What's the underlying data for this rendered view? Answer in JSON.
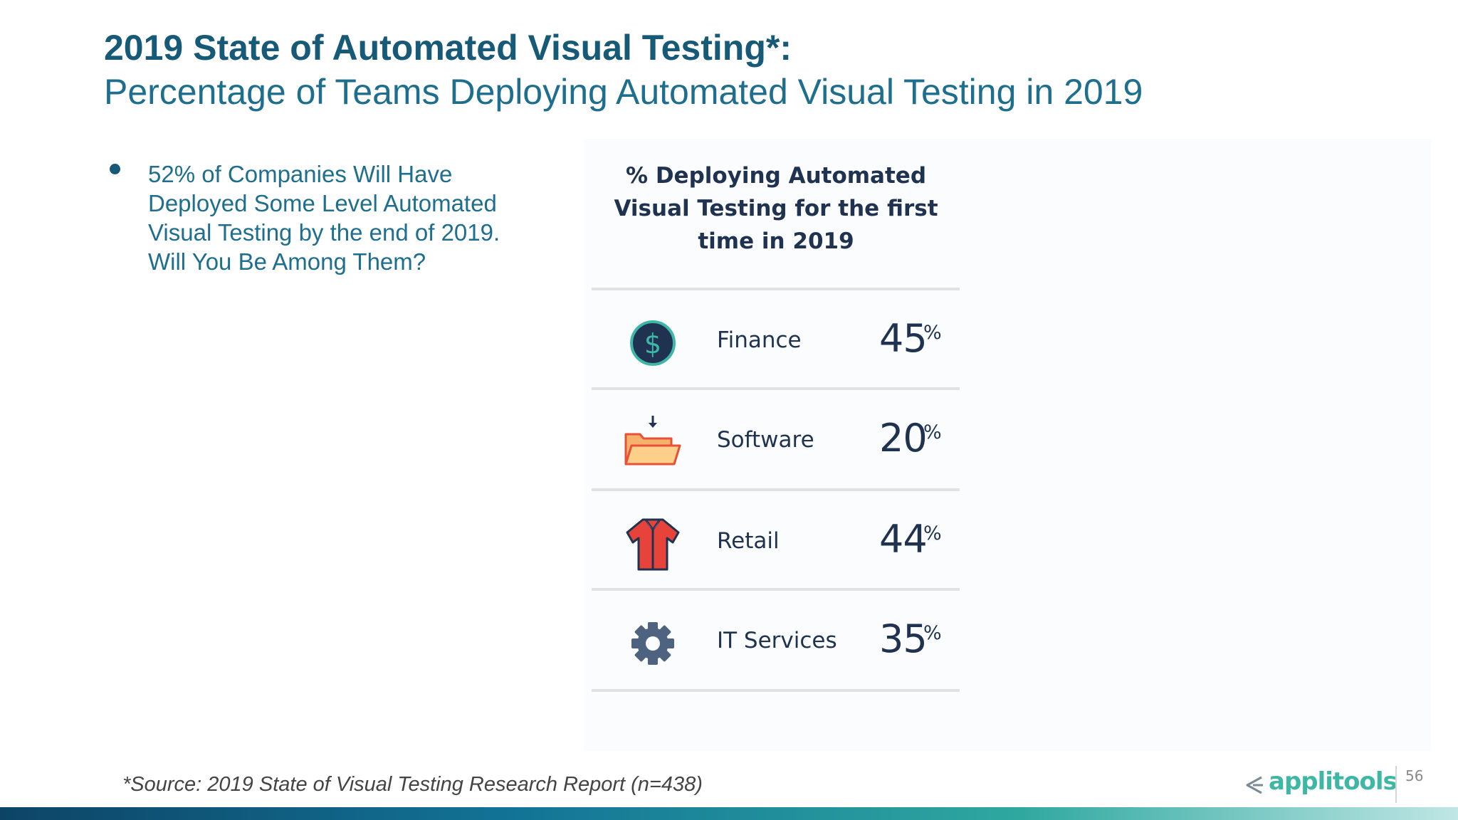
{
  "slide": {
    "title_bold": "2019 State of Automated Visual Testing*:",
    "title_sub": "Percentage of Teams Deploying Automated Visual Testing in 2019",
    "bullet": "52% of Companies Will Have Deployed Some Level Automated Visual Testing by the end of 2019. Will You Be Among Them?",
    "source": "*Source: 2019 State of Visual Testing Research Report (n=438)",
    "logo_text": "applitools",
    "page_number": "56"
  },
  "panel": {
    "title": "% Deploying Automated Visual Testing for the first time in 2019",
    "rows": [
      {
        "icon": "dollar-coin-icon",
        "label": "Finance",
        "value": "45",
        "unit": "%"
      },
      {
        "icon": "folder-download-icon",
        "label": "Software",
        "value": "20",
        "unit": "%"
      },
      {
        "icon": "shirt-icon",
        "label": "Retail",
        "value": "44",
        "unit": "%"
      },
      {
        "icon": "gear-icon",
        "label": "IT Services",
        "value": "35",
        "unit": "%"
      }
    ]
  },
  "colors": {
    "title": "#175a78",
    "body_text": "#1e6e8e",
    "panel_text": "#1f3350",
    "logo": "#3eb8a4",
    "accent_teal": "#2fa8a0"
  }
}
